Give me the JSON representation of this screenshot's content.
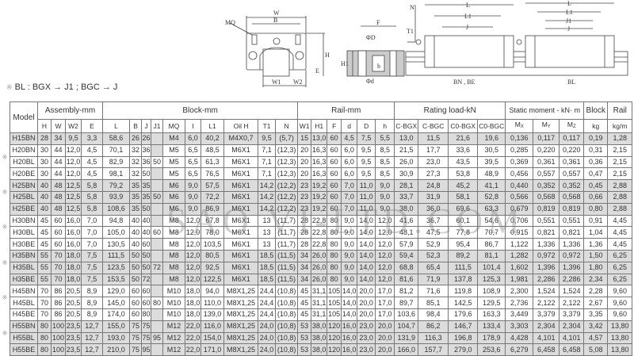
{
  "drawing_labels": {
    "mq": "MQ",
    "w": "W",
    "b": "B",
    "h": "H",
    "e": "E",
    "w1": "W1",
    "w2": "W2",
    "f": "F",
    "phi_big_d": "ΦD",
    "phi_d": "Φd",
    "h1": "H1",
    "h_small": "h",
    "n": "N",
    "t1": "T1",
    "l": "L",
    "l1": "L1",
    "j": "J",
    "j1": "J1",
    "bn_be": "BN , BE",
    "bl": "BL"
  },
  "note": {
    "mark": "※",
    "text": "BL : BGX → J1 ; BGC → J"
  },
  "watermark": "SAO VI-LTD.COM",
  "table": {
    "model_header": "Model",
    "groups": [
      "Assembly-mm",
      "Block-mm",
      "Rail-mm",
      "Rating load-kN",
      "Static moment - kN· m",
      "Block",
      "Rail"
    ],
    "columns": [
      "H",
      "W",
      "W2",
      "E",
      "L",
      "B",
      "J",
      "J1",
      "MQ",
      "I",
      "L1",
      "Oil H",
      "T1",
      "N",
      "W1",
      "H1",
      "F",
      "d",
      "D",
      "h",
      "C-BGX",
      "C-BGC",
      "C0-BGX",
      "C0-BGC",
      {
        "m": "M",
        "s": "X"
      },
      {
        "m": "M",
        "s": "Y"
      },
      {
        "m": "M",
        "s": "Z"
      },
      "kg",
      "kg/m"
    ],
    "rows": [
      {
        "model": "H15BN",
        "shaded": true,
        "mark": "",
        "v": [
          "28",
          "34",
          "9,5",
          "3,3",
          "58,6",
          "26",
          "26",
          "",
          "M4",
          "6,0",
          "40,2",
          "M4X0,7",
          "9,5",
          "(5,7)",
          "15",
          "13,0",
          "60",
          "4,5",
          "7,5",
          "5,5",
          "13,0",
          "11,5",
          "21,6",
          "19,6",
          "0,136",
          "0,117",
          "0,117",
          "0,19",
          "1,28"
        ]
      },
      {
        "model": "H20BN",
        "shaded": false,
        "mark": "",
        "v": [
          "30",
          "44",
          "12,0",
          "4,5",
          "70,1",
          "32",
          "36",
          "",
          "M5",
          "6,5",
          "48,5",
          "M6X1",
          "7,1",
          "(12,3)",
          "20",
          "16,3",
          "60",
          "6,0",
          "9,5",
          "8,5",
          "21,5",
          "17,7",
          "33,6",
          "30,5",
          "0,285",
          "0,220",
          "0,220",
          "0,31",
          "2,15"
        ]
      },
      {
        "model": "H20BL",
        "shaded": false,
        "mark": "※",
        "v": [
          "30",
          "44",
          "12,0",
          "4,5",
          "82,9",
          "32",
          "36",
          "50",
          "M5",
          "6,5",
          "61,3",
          "M6X1",
          "7,1",
          "(12,3)",
          "20",
          "16,3",
          "60",
          "6,0",
          "9,5",
          "8,5",
          "26,0",
          "23,0",
          "43,5",
          "39,5",
          "0,369",
          "0,361",
          "0,361",
          "0,36",
          "2,15"
        ]
      },
      {
        "model": "H20BE",
        "shaded": false,
        "mark": "",
        "v": [
          "30",
          "44",
          "12,0",
          "4,5",
          "98,1",
          "32",
          "50",
          "",
          "M5",
          "6,5",
          "76,5",
          "M6X1",
          "7,1",
          "(12,3)",
          "20",
          "16,3",
          "60",
          "6,0",
          "9,5",
          "8,5",
          "30,9",
          "27,3",
          "53,8",
          "48,9",
          "0,456",
          "0,557",
          "0,557",
          "0,47",
          "2,15"
        ]
      },
      {
        "model": "H25BN",
        "shaded": true,
        "mark": "",
        "v": [
          "40",
          "48",
          "12,5",
          "5,8",
          "79,2",
          "35",
          "35",
          "",
          "M6",
          "9,0",
          "57,5",
          "M6X1",
          "14,2",
          "(12,2)",
          "23",
          "19,2",
          "60",
          "7,0",
          "11,0",
          "9,0",
          "28,1",
          "24,8",
          "45,2",
          "41,1",
          "0,440",
          "0,352",
          "0,352",
          "0,45",
          "2,88"
        ]
      },
      {
        "model": "H25BL",
        "shaded": true,
        "mark": "※",
        "v": [
          "40",
          "48",
          "12,5",
          "5,8",
          "93,9",
          "35",
          "35",
          "50",
          "M6",
          "9,0",
          "72,2",
          "M6X1",
          "14,2",
          "(12,2)",
          "23",
          "19,2",
          "60",
          "7,0",
          "11,0",
          "9,0",
          "33,7",
          "31,9",
          "58,1",
          "52,8",
          "0,566",
          "0,568",
          "0,568",
          "0,66",
          "2,88"
        ]
      },
      {
        "model": "H25BE",
        "shaded": true,
        "mark": "",
        "v": [
          "40",
          "48",
          "12,5",
          "5,8",
          "108,6",
          "35",
          "50",
          "",
          "M6",
          "9,0",
          "86,9",
          "M6X1",
          "14,2",
          "(12,2)",
          "23",
          "19,2",
          "60",
          "7,0",
          "11,0",
          "9,0",
          "38,0",
          "36,0",
          "69,6",
          "63,3",
          "0,679",
          "0,819",
          "0,819",
          "0,80",
          "2,88"
        ]
      },
      {
        "model": "H30BN",
        "shaded": false,
        "mark": "",
        "v": [
          "45",
          "60",
          "16,0",
          "7,0",
          "94,8",
          "40",
          "40",
          "",
          "M8",
          "12,0",
          "67,8",
          "M6X1",
          "13",
          "(11,7)",
          "28",
          "22,8",
          "80",
          "9,0",
          "14,0",
          "12,0",
          "41,6",
          "36,7",
          "60,1",
          "54,6",
          "0,706",
          "0,551",
          "0,551",
          "0,91",
          "4,45"
        ]
      },
      {
        "model": "H30BL",
        "shaded": false,
        "mark": "※",
        "v": [
          "45",
          "60",
          "16,0",
          "7,0",
          "105,0",
          "40",
          "40",
          "60",
          "M8",
          "12,0",
          "78,0",
          "M6X1",
          "13",
          "(11,7)",
          "28",
          "22,8",
          "80",
          "9,0",
          "14,0",
          "12,0",
          "48,1",
          "47,5",
          "77,8",
          "70,7",
          "0,915",
          "0,821",
          "0,821",
          "1,04",
          "4,45"
        ]
      },
      {
        "model": "H30BE",
        "shaded": false,
        "mark": "",
        "v": [
          "45",
          "60",
          "16,0",
          "7,0",
          "130,5",
          "40",
          "60",
          "",
          "M8",
          "12,0",
          "103,5",
          "M6X1",
          "13",
          "(11,7)",
          "28",
          "22,8",
          "80",
          "9,0",
          "14,0",
          "12,0",
          "57,9",
          "52,9",
          "95,4",
          "86,7",
          "1,122",
          "1,336",
          "1,336",
          "1,36",
          "4,45"
        ]
      },
      {
        "model": "H35BN",
        "shaded": true,
        "mark": "",
        "v": [
          "55",
          "70",
          "18,0",
          "7,5",
          "111,5",
          "50",
          "50",
          "",
          "M8",
          "12,0",
          "80,5",
          "M6X1",
          "18,5",
          "(11,5)",
          "34",
          "26,0",
          "80",
          "9,0",
          "14,0",
          "12,0",
          "59,4",
          "52,3",
          "89,2",
          "81,1",
          "1,282",
          "0,972",
          "0,972",
          "1,50",
          "6,25"
        ]
      },
      {
        "model": "H35BL",
        "shaded": true,
        "mark": "※",
        "v": [
          "55",
          "70",
          "18,0",
          "7,5",
          "123,5",
          "50",
          "50",
          "72",
          "M8",
          "12,0",
          "92,5",
          "M6X1",
          "18,5",
          "(11,5)",
          "34",
          "26,0",
          "80",
          "9,0",
          "14,0",
          "12,0",
          "68,8",
          "65,4",
          "111,5",
          "101,4",
          "1,602",
          "1,396",
          "1,396",
          "1,80",
          "6,25"
        ]
      },
      {
        "model": "H35BE",
        "shaded": true,
        "mark": "",
        "v": [
          "55",
          "70",
          "18,0",
          "7,5",
          "153,5",
          "50",
          "72",
          "",
          "M8",
          "12,0",
          "122,5",
          "M6X1",
          "18,5",
          "(11,5)",
          "34",
          "26,0",
          "80",
          "9,0",
          "14,0",
          "12,0",
          "81,6",
          "71,9",
          "137,8",
          "125,3",
          "1,981",
          "2,286",
          "2,286",
          "2,34",
          "6,25"
        ]
      },
      {
        "model": "H45BN",
        "shaded": false,
        "mark": "",
        "v": [
          "70",
          "86",
          "20,5",
          "8,9",
          "129,0",
          "60",
          "60",
          "",
          "M10",
          "18,0",
          "94,0",
          "M8X1,25",
          "24,4",
          "(10,8)",
          "45",
          "31,1",
          "105",
          "14,0",
          "20,0",
          "17,0",
          "81,2",
          "71,6",
          "119,8",
          "108,9",
          "2,300",
          "1,524",
          "1,524",
          "2,28",
          "9,60"
        ]
      },
      {
        "model": "H45BL",
        "shaded": false,
        "mark": "※",
        "v": [
          "70",
          "86",
          "20,5",
          "8,9",
          "145,0",
          "60",
          "60",
          "80",
          "M10",
          "18,0",
          "110,0",
          "M8X1,25",
          "24,4",
          "(10,8)",
          "45",
          "31,1",
          "105",
          "14,0",
          "20,0",
          "17,0",
          "89,7",
          "85,1",
          "142,5",
          "129,5",
          "2,736",
          "2,122",
          "2,122",
          "2,67",
          "9,60"
        ]
      },
      {
        "model": "H45BE",
        "shaded": false,
        "mark": "",
        "v": [
          "70",
          "86",
          "20,5",
          "8,9",
          "174,0",
          "60",
          "80",
          "",
          "M10",
          "18,0",
          "139,0",
          "M8X1,25",
          "24,4",
          "(10,8)",
          "45",
          "31,1",
          "105",
          "14,0",
          "20,0",
          "17,0",
          "103,6",
          "98,4",
          "179,6",
          "163,3",
          "3,449",
          "3,379",
          "3,379",
          "3,35",
          "9,60"
        ]
      },
      {
        "model": "H55BN",
        "shaded": true,
        "mark": "",
        "v": [
          "80",
          "100",
          "23,5",
          "12,7",
          "155,0",
          "75",
          "75",
          "",
          "M12",
          "22,0",
          "116,0",
          "M8X1,25",
          "24,0",
          "(10,8)",
          "53",
          "38,0",
          "120",
          "16,0",
          "23,0",
          "20,0",
          "104,7",
          "86,2",
          "146,7",
          "133,4",
          "3,303",
          "2,304",
          "2,304",
          "3,42",
          "13,80"
        ]
      },
      {
        "model": "H55BL",
        "shaded": true,
        "mark": "※",
        "v": [
          "80",
          "100",
          "23,5",
          "12,7",
          "193,0",
          "75",
          "75",
          "95",
          "M12",
          "22,0",
          "154,0",
          "M8X1,25",
          "24,0",
          "(10,8)",
          "53",
          "38,0",
          "120",
          "16,0",
          "23,0",
          "20,0",
          "131,9",
          "116,3",
          "196,8",
          "178,9",
          "4,428",
          "4,101",
          "4,101",
          "4,57",
          "13,80"
        ]
      },
      {
        "model": "H55BE",
        "shaded": true,
        "mark": "",
        "v": [
          "80",
          "100",
          "23,5",
          "12,7",
          "210,0",
          "75",
          "95",
          "",
          "M12",
          "22,0",
          "171,0",
          "M8X1,25",
          "24,0",
          "(10,8)",
          "53",
          "38,0",
          "120",
          "16,0",
          "23,0",
          "20,0",
          "166,0",
          "157,7",
          "279,0",
          "253,6",
          "6,279",
          "6,458",
          "6,458",
          "5,08",
          "13,80"
        ]
      }
    ]
  }
}
